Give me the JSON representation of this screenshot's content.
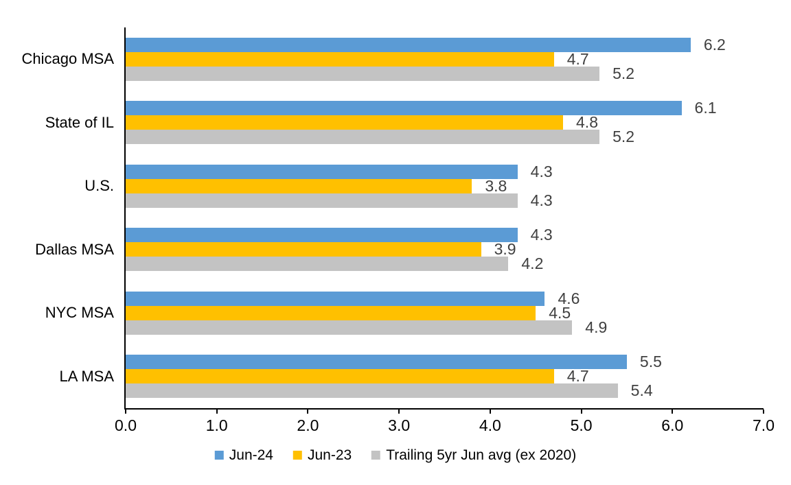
{
  "chart_data": {
    "type": "bar",
    "orientation": "horizontal",
    "categories": [
      "Chicago MSA",
      "State of IL",
      "U.S.",
      "Dallas MSA",
      "NYC MSA",
      "LA MSA"
    ],
    "series": [
      {
        "name": "Jun-24",
        "color": "#5B9BD5",
        "values": [
          6.2,
          6.1,
          4.3,
          4.3,
          4.6,
          5.5
        ],
        "labels": [
          "6.2",
          "6.1",
          "4.3",
          "4.3",
          "4.6",
          "5.5"
        ]
      },
      {
        "name": "Jun-23",
        "color": "#FFC000",
        "values": [
          4.7,
          4.8,
          3.8,
          3.9,
          4.5,
          4.7
        ],
        "labels": [
          "4.7",
          "4.8",
          "3.8",
          "3.9",
          "4.5",
          "4.7"
        ]
      },
      {
        "name": "Trailing 5yr Jun avg (ex 2020)",
        "color": "#C3C3C3",
        "values": [
          5.2,
          5.2,
          4.3,
          4.2,
          4.9,
          5.4
        ],
        "labels": [
          "5.2",
          "5.2",
          "4.3",
          "4.2",
          "4.9",
          "5.4"
        ]
      }
    ],
    "xlim": [
      0,
      7
    ],
    "x_ticks": [
      "0.0",
      "1.0",
      "2.0",
      "3.0",
      "4.0",
      "5.0",
      "6.0",
      "7.0"
    ],
    "grid": false,
    "legend_position": "bottom",
    "data_label_color": "#404040",
    "axis_color": "#000000",
    "background_color": "#FFFFFF"
  }
}
